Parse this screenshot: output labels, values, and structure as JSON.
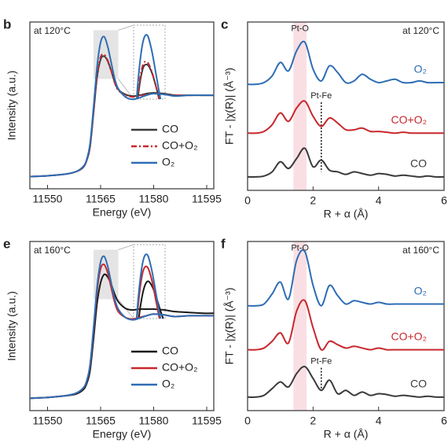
{
  "chart_data": [
    {
      "type": "line",
      "label": "b",
      "note": "at 120°C",
      "note_corner": "upper left",
      "xlabel": "Energy (eV)",
      "ylabel": "Intensity (a.u.)",
      "xlim": [
        11545,
        11597
      ],
      "xticks": [
        11550,
        11565,
        11580,
        11595
      ],
      "ylim": [
        -0.15,
        1.9
      ],
      "legend": "lower right",
      "inset": {
        "xlim": [
          11563,
          11570
        ],
        "ylim": [
          1.2,
          1.8
        ]
      },
      "x": [
        11545,
        11550,
        11555,
        11558,
        11560,
        11561,
        11562,
        11563,
        11564,
        11565,
        11566,
        11567,
        11568,
        11569,
        11570,
        11572,
        11574,
        11576,
        11578,
        11580,
        11583,
        11586,
        11590,
        11594,
        11597
      ],
      "series": [
        {
          "name": "CO",
          "color": "#3a3a3a",
          "style": "solid",
          "values": [
            0.0,
            0.01,
            0.03,
            0.06,
            0.11,
            0.19,
            0.36,
            0.78,
            1.22,
            1.44,
            1.48,
            1.42,
            1.3,
            1.16,
            1.07,
            1.01,
            0.99,
            1.0,
            1.02,
            1.03,
            1.02,
            1.0,
            1.0,
            1.0,
            1.0
          ]
        },
        {
          "name": "CO+O₂",
          "color": "#c8282d",
          "style": "dashdot",
          "values": [
            0.0,
            0.01,
            0.03,
            0.06,
            0.11,
            0.19,
            0.37,
            0.8,
            1.25,
            1.47,
            1.5,
            1.43,
            1.3,
            1.15,
            1.06,
            1.0,
            0.98,
            0.99,
            1.01,
            1.02,
            1.01,
            1.0,
            1.0,
            1.0,
            1.0
          ]
        },
        {
          "name": "O₂",
          "color": "#2e6db4",
          "style": "solid",
          "values": [
            0.0,
            0.01,
            0.03,
            0.06,
            0.12,
            0.2,
            0.4,
            0.85,
            1.35,
            1.65,
            1.72,
            1.6,
            1.4,
            1.2,
            1.08,
            0.98,
            0.95,
            0.97,
            1.0,
            1.02,
            1.01,
            0.99,
            1.0,
            1.0,
            1.0
          ]
        }
      ]
    },
    {
      "type": "line",
      "label": "c",
      "note": "at 120°C",
      "note_corner": "upper right",
      "xlabel": "R + α (Å)",
      "ylabel": "FT - |χ(R)| (Å⁻³)",
      "xlim": [
        0,
        6
      ],
      "xticks": [
        0,
        2,
        4,
        6
      ],
      "ylim": [
        0,
        10
      ],
      "legend": "inline",
      "band": [
        1.4,
        1.8
      ],
      "annotations": [
        {
          "text": "Pt-O",
          "x": 1.6,
          "y": 9.6
        },
        {
          "text": "Pt-Fe",
          "x": 2.25,
          "y": 5.6,
          "line_to": 1.1
        }
      ],
      "x": [
        0,
        0.25,
        0.5,
        0.75,
        1,
        1.25,
        1.5,
        1.75,
        2,
        2.25,
        2.5,
        2.75,
        3,
        3.25,
        3.5,
        3.75,
        4,
        4.25,
        4.5,
        4.75,
        5,
        5.25,
        5.5,
        5.75,
        6
      ],
      "series": [
        {
          "name": "CO",
          "color": "#3a3a3a",
          "style": "solid",
          "values": [
            0.8,
            0.8,
            0.85,
            1.1,
            1.7,
            1.3,
            1.9,
            2.5,
            1.4,
            1.8,
            1.2,
            1.1,
            0.95,
            1.1,
            1.0,
            0.9,
            1.0,
            0.95,
            0.85,
            0.9,
            0.85,
            0.8,
            0.85,
            0.8,
            0.8
          ]
        },
        {
          "name": "CO+O₂",
          "color": "#c8282d",
          "style": "solid",
          "values": [
            3.4,
            3.4,
            3.5,
            3.9,
            4.6,
            4.1,
            4.9,
            5.3,
            4.4,
            3.8,
            4.3,
            4.0,
            3.6,
            3.6,
            3.7,
            3.5,
            3.5,
            3.45,
            3.4,
            3.45,
            3.4,
            3.4,
            3.4,
            3.4,
            3.4
          ]
        },
        {
          "name": "O₂",
          "color": "#2e6db4",
          "style": "solid",
          "values": [
            6.3,
            6.3,
            6.4,
            6.8,
            7.6,
            7.1,
            8.3,
            8.8,
            7.2,
            6.5,
            7.4,
            7.0,
            6.4,
            6.5,
            6.9,
            6.6,
            6.4,
            6.5,
            6.6,
            6.4,
            6.4,
            6.5,
            6.4,
            6.4,
            6.4
          ]
        }
      ]
    },
    {
      "type": "line",
      "label": "e",
      "note": "at 160°C",
      "note_corner": "upper left",
      "xlabel": "Energy (eV)",
      "ylabel": "Intensity (a.u.)",
      "xlim": [
        11545,
        11597
      ],
      "xticks": [
        11550,
        11565,
        11580,
        11595
      ],
      "ylim": [
        -0.15,
        1.9
      ],
      "legend": "lower right",
      "inset": {
        "xlim": [
          11563,
          11570
        ],
        "ylim": [
          1.2,
          1.8
        ]
      },
      "x": [
        11545,
        11550,
        11555,
        11558,
        11560,
        11561,
        11562,
        11563,
        11564,
        11565,
        11566,
        11567,
        11568,
        11569,
        11570,
        11572,
        11574,
        11576,
        11578,
        11580,
        11583,
        11586,
        11590,
        11594,
        11597
      ],
      "series": [
        {
          "name": "CO",
          "color": "#1a1a1a",
          "style": "solid",
          "values": [
            0.0,
            0.01,
            0.03,
            0.05,
            0.1,
            0.17,
            0.33,
            0.72,
            1.15,
            1.4,
            1.5,
            1.47,
            1.38,
            1.26,
            1.17,
            1.09,
            1.07,
            1.08,
            1.08,
            1.08,
            1.07,
            1.05,
            1.04,
            1.03,
            1.03
          ]
        },
        {
          "name": "CO+O₂",
          "color": "#c8282d",
          "style": "solid",
          "values": [
            0.0,
            0.01,
            0.03,
            0.06,
            0.12,
            0.2,
            0.39,
            0.83,
            1.3,
            1.57,
            1.62,
            1.52,
            1.34,
            1.16,
            1.05,
            0.98,
            0.96,
            0.98,
            1.0,
            1.02,
            1.01,
            0.99,
            1.0,
            1.0,
            1.0
          ]
        },
        {
          "name": "O₂",
          "color": "#2e6db4",
          "style": "solid",
          "values": [
            0.0,
            0.01,
            0.03,
            0.06,
            0.12,
            0.2,
            0.4,
            0.85,
            1.35,
            1.65,
            1.72,
            1.6,
            1.4,
            1.2,
            1.08,
            0.98,
            0.95,
            0.97,
            1.0,
            1.02,
            1.01,
            0.99,
            1.0,
            1.0,
            1.0
          ]
        }
      ]
    },
    {
      "type": "line",
      "label": "f",
      "note": "at 160°C",
      "note_corner": "upper right",
      "xlabel": "R + α (Å)",
      "ylabel": "FT - |χ(R)| (Å⁻³)",
      "xlim": [
        0,
        6
      ],
      "xticks": [
        0,
        2,
        4,
        6
      ],
      "ylim": [
        0,
        10
      ],
      "legend": "inline",
      "band": [
        1.4,
        1.8
      ],
      "annotations": [
        {
          "text": "Pt-O",
          "x": 1.6,
          "y": 9.6
        },
        {
          "text": "Pt-Fe",
          "x": 2.25,
          "y": 2.9,
          "line_to": 1.3
        }
      ],
      "x": [
        0,
        0.25,
        0.5,
        0.75,
        1,
        1.25,
        1.5,
        1.75,
        2,
        2.25,
        2.5,
        2.75,
        3,
        3.25,
        3.5,
        3.75,
        4,
        4.25,
        4.5,
        4.75,
        5,
        5.25,
        5.5,
        5.75,
        6
      ],
      "series": [
        {
          "name": "CO",
          "color": "#3a3a3a",
          "style": "solid",
          "values": [
            0.8,
            0.8,
            0.9,
            1.3,
            1.7,
            1.4,
            2.2,
            2.6,
            1.9,
            1.2,
            1.8,
            1.0,
            1.2,
            0.9,
            1.1,
            0.9,
            1.0,
            0.95,
            0.85,
            0.9,
            0.85,
            0.8,
            0.85,
            0.8,
            0.8
          ]
        },
        {
          "name": "CO+O₂",
          "color": "#c8282d",
          "style": "solid",
          "values": [
            3.6,
            3.6,
            3.7,
            4.1,
            4.6,
            4.0,
            5.9,
            6.5,
            4.9,
            3.6,
            4.1,
            3.9,
            3.7,
            3.8,
            3.7,
            3.6,
            3.7,
            3.6,
            3.6,
            3.6,
            3.6,
            3.6,
            3.6,
            3.6,
            3.6
          ]
        },
        {
          "name": "O₂",
          "color": "#2e6db4",
          "style": "solid",
          "values": [
            6.2,
            6.2,
            6.3,
            6.9,
            7.6,
            6.6,
            8.9,
            9.4,
            7.4,
            6.2,
            7.4,
            6.8,
            6.3,
            6.5,
            6.4,
            6.3,
            6.4,
            6.3,
            6.3,
            6.3,
            6.3,
            6.3,
            6.3,
            6.3,
            6.3
          ]
        }
      ]
    }
  ]
}
